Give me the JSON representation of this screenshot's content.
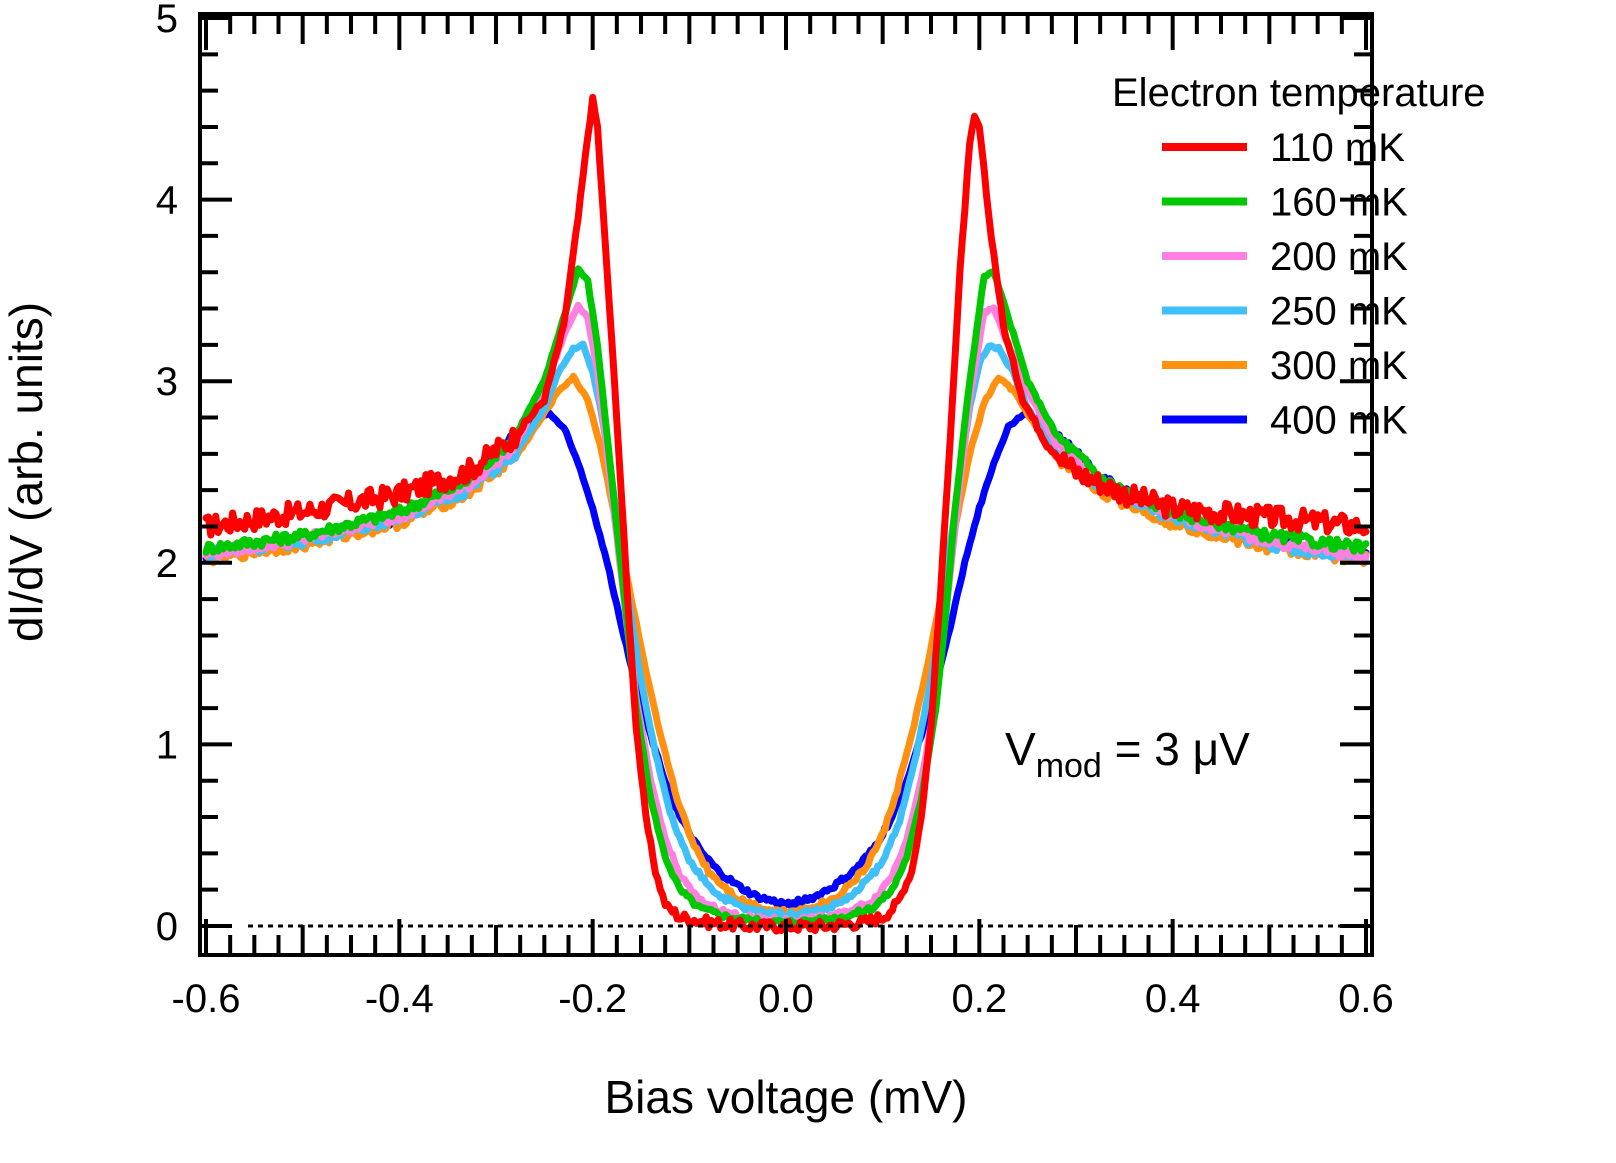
{
  "chart_data": {
    "type": "line",
    "title": "",
    "xlabel": "Bias voltage (mV)",
    "ylabel": "dI/dV (arb. units)",
    "xlim": [
      -0.6,
      0.6
    ],
    "ylim": [
      -0.15,
      5.0
    ],
    "xticks": [
      -0.6,
      -0.4,
      -0.2,
      0.0,
      0.2,
      0.4,
      0.6
    ],
    "xtick_labels": [
      "-0.6",
      "-0.4",
      "-0.2",
      "0.0",
      "0.2",
      "0.4",
      "0.6"
    ],
    "xminor_step": 0.025,
    "yticks": [
      0,
      1,
      2,
      3,
      4,
      5
    ],
    "ytick_labels": [
      "0",
      "1",
      "2",
      "3",
      "4",
      "5"
    ],
    "yminor_step": 0.2,
    "grid": false,
    "reference_line": {
      "y": 0,
      "style": "dotted",
      "color": "#000000"
    },
    "legend": {
      "title": "Electron temperature",
      "placement": "top-right",
      "entries": [
        "110 mK",
        "160 mK",
        "200 mK",
        "250 mK",
        "300 mK",
        "400 mK"
      ]
    },
    "annotation": {
      "main": "V",
      "subscript": "mod",
      "rest": " = 3 μV"
    },
    "series": [
      {
        "name": "110 mK",
        "color": "#ff0000",
        "x": [
          -0.6,
          -0.5,
          -0.4,
          -0.33,
          -0.28,
          -0.25,
          -0.23,
          -0.215,
          -0.205,
          -0.2,
          -0.195,
          -0.185,
          -0.175,
          -0.165,
          -0.155,
          -0.145,
          -0.135,
          -0.125,
          -0.11,
          -0.08,
          -0.04,
          0.0,
          0.04,
          0.08,
          0.1,
          0.115,
          0.13,
          0.14,
          0.15,
          0.16,
          0.17,
          0.18,
          0.19,
          0.195,
          0.2,
          0.21,
          0.225,
          0.245,
          0.27,
          0.3,
          0.35,
          0.4,
          0.5,
          0.6
        ],
        "y": [
          2.2,
          2.28,
          2.38,
          2.5,
          2.7,
          2.9,
          3.3,
          3.9,
          4.35,
          4.55,
          4.4,
          3.6,
          2.8,
          1.9,
          1.1,
          0.6,
          0.3,
          0.12,
          0.05,
          0.02,
          0.0,
          0.0,
          0.0,
          0.02,
          0.05,
          0.12,
          0.3,
          0.6,
          1.1,
          1.85,
          2.7,
          3.6,
          4.3,
          4.45,
          4.4,
          3.9,
          3.3,
          2.9,
          2.65,
          2.5,
          2.38,
          2.3,
          2.25,
          2.2
        ]
      },
      {
        "name": "160 mK",
        "color": "#00c800",
        "x": [
          -0.6,
          -0.5,
          -0.4,
          -0.33,
          -0.28,
          -0.25,
          -0.23,
          -0.215,
          -0.205,
          -0.195,
          -0.185,
          -0.175,
          -0.165,
          -0.155,
          -0.14,
          -0.125,
          -0.11,
          -0.09,
          -0.06,
          -0.03,
          0.0,
          0.03,
          0.06,
          0.09,
          0.11,
          0.125,
          0.14,
          0.155,
          0.165,
          0.175,
          0.19,
          0.205,
          0.215,
          0.23,
          0.25,
          0.28,
          0.33,
          0.4,
          0.5,
          0.6
        ],
        "y": [
          2.08,
          2.15,
          2.28,
          2.45,
          2.7,
          3.0,
          3.35,
          3.62,
          3.55,
          3.2,
          2.7,
          2.2,
          1.7,
          1.2,
          0.7,
          0.38,
          0.2,
          0.1,
          0.05,
          0.03,
          0.02,
          0.03,
          0.05,
          0.1,
          0.2,
          0.38,
          0.7,
          1.2,
          1.7,
          2.3,
          3.0,
          3.58,
          3.6,
          3.35,
          3.0,
          2.7,
          2.45,
          2.28,
          2.15,
          2.08
        ]
      },
      {
        "name": "200 mK",
        "color": "#ff80e0",
        "x": [
          -0.6,
          -0.5,
          -0.4,
          -0.33,
          -0.28,
          -0.25,
          -0.23,
          -0.215,
          -0.205,
          -0.195,
          -0.185,
          -0.175,
          -0.165,
          -0.155,
          -0.14,
          -0.125,
          -0.11,
          -0.09,
          -0.06,
          -0.03,
          0.0,
          0.03,
          0.06,
          0.09,
          0.11,
          0.125,
          0.14,
          0.155,
          0.165,
          0.175,
          0.19,
          0.205,
          0.215,
          0.23,
          0.25,
          0.28,
          0.33,
          0.4,
          0.5,
          0.6
        ],
        "y": [
          2.05,
          2.13,
          2.26,
          2.42,
          2.65,
          2.95,
          3.25,
          3.42,
          3.35,
          3.05,
          2.6,
          2.15,
          1.68,
          1.25,
          0.8,
          0.48,
          0.28,
          0.14,
          0.07,
          0.04,
          0.03,
          0.04,
          0.07,
          0.14,
          0.28,
          0.48,
          0.8,
          1.25,
          1.7,
          2.2,
          2.9,
          3.38,
          3.4,
          3.2,
          2.95,
          2.65,
          2.42,
          2.26,
          2.12,
          2.03
        ]
      },
      {
        "name": "250 mK",
        "color": "#40c0f8",
        "x": [
          -0.6,
          -0.5,
          -0.4,
          -0.33,
          -0.28,
          -0.25,
          -0.235,
          -0.22,
          -0.21,
          -0.2,
          -0.19,
          -0.18,
          -0.17,
          -0.16,
          -0.15,
          -0.135,
          -0.12,
          -0.1,
          -0.07,
          -0.04,
          0.0,
          0.04,
          0.07,
          0.1,
          0.12,
          0.135,
          0.15,
          0.16,
          0.17,
          0.18,
          0.19,
          0.2,
          0.21,
          0.22,
          0.235,
          0.25,
          0.28,
          0.33,
          0.4,
          0.5,
          0.6
        ],
        "y": [
          2.05,
          2.12,
          2.25,
          2.4,
          2.6,
          2.85,
          3.05,
          3.18,
          3.2,
          3.05,
          2.8,
          2.45,
          2.05,
          1.7,
          1.35,
          0.95,
          0.62,
          0.35,
          0.17,
          0.09,
          0.06,
          0.09,
          0.17,
          0.35,
          0.62,
          0.95,
          1.35,
          1.7,
          2.1,
          2.5,
          2.85,
          3.1,
          3.2,
          3.18,
          3.05,
          2.85,
          2.6,
          2.4,
          2.25,
          2.1,
          2.02
        ]
      },
      {
        "name": "300 mK",
        "color": "#ff9010",
        "x": [
          -0.6,
          -0.5,
          -0.4,
          -0.33,
          -0.28,
          -0.255,
          -0.235,
          -0.22,
          -0.205,
          -0.19,
          -0.175,
          -0.16,
          -0.145,
          -0.13,
          -0.115,
          -0.1,
          -0.08,
          -0.05,
          -0.02,
          0.0,
          0.02,
          0.05,
          0.08,
          0.1,
          0.115,
          0.13,
          0.145,
          0.16,
          0.175,
          0.19,
          0.205,
          0.22,
          0.235,
          0.255,
          0.28,
          0.33,
          0.4,
          0.5,
          0.6
        ],
        "y": [
          2.02,
          2.1,
          2.22,
          2.38,
          2.58,
          2.78,
          2.95,
          3.02,
          2.9,
          2.6,
          2.2,
          1.8,
          1.4,
          1.05,
          0.75,
          0.5,
          0.3,
          0.15,
          0.09,
          0.08,
          0.09,
          0.15,
          0.3,
          0.5,
          0.75,
          1.05,
          1.4,
          1.8,
          2.2,
          2.6,
          2.88,
          3.02,
          2.95,
          2.78,
          2.58,
          2.38,
          2.22,
          2.08,
          2.02
        ]
      },
      {
        "name": "400 mK",
        "color": "#0000ff",
        "x": [
          -0.6,
          -0.5,
          -0.4,
          -0.33,
          -0.29,
          -0.265,
          -0.245,
          -0.23,
          -0.215,
          -0.2,
          -0.185,
          -0.17,
          -0.155,
          -0.14,
          -0.125,
          -0.11,
          -0.09,
          -0.07,
          -0.05,
          -0.03,
          -0.01,
          0.0,
          0.01,
          0.03,
          0.05,
          0.07,
          0.09,
          0.11,
          0.125,
          0.14,
          0.155,
          0.17,
          0.185,
          0.2,
          0.215,
          0.23,
          0.245,
          0.265,
          0.29,
          0.33,
          0.4,
          0.5,
          0.6
        ],
        "y": [
          2.05,
          2.12,
          2.25,
          2.45,
          2.65,
          2.78,
          2.82,
          2.75,
          2.55,
          2.3,
          2.0,
          1.65,
          1.32,
          1.05,
          0.8,
          0.6,
          0.42,
          0.3,
          0.22,
          0.16,
          0.13,
          0.12,
          0.13,
          0.16,
          0.22,
          0.3,
          0.42,
          0.6,
          0.8,
          1.05,
          1.32,
          1.65,
          2.0,
          2.3,
          2.55,
          2.75,
          2.82,
          2.78,
          2.65,
          2.45,
          2.25,
          2.12,
          2.05
        ]
      }
    ]
  }
}
